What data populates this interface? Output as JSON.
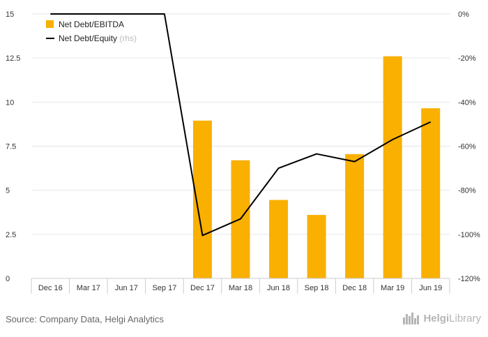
{
  "source": "Source: Company Data, Helgi Analytics",
  "brand": {
    "name_a": "Helgi",
    "name_b": "Library",
    "icon": "city-skyline-icon"
  },
  "colors": {
    "bar": "#F9B000",
    "line": "#000000",
    "grid": "#e6e6e6",
    "axis": "#cccccc"
  },
  "chart_data": {
    "type": "bar",
    "categories": [
      "Dec 16",
      "Mar 17",
      "Jun 17",
      "Sep 17",
      "Dec 17",
      "Mar 18",
      "Jun 18",
      "Sep 18",
      "Dec 18",
      "Mar 19",
      "Jun 19"
    ],
    "series": [
      {
        "name": "Net Debt/EBITDA",
        "type": "bar",
        "axis": "left",
        "values": [
          null,
          null,
          null,
          null,
          8.95,
          6.7,
          4.45,
          3.6,
          7.05,
          12.6,
          9.65
        ]
      },
      {
        "name": "Net Debt/Equity",
        "type": "line",
        "axis": "right",
        "unit": "%",
        "values": [
          0,
          0,
          0,
          0,
          -100.5,
          -93,
          -70,
          -63.5,
          -67,
          -57,
          -49
        ]
      }
    ],
    "legend_rhs_note": "(rhs)",
    "ylim_left": [
      0,
      15
    ],
    "yticks_left": [
      "0",
      "2.5",
      "5",
      "7.5",
      "10",
      "12.5",
      "15"
    ],
    "ylim_right": [
      -120,
      0
    ],
    "yticks_right": [
      "-120%",
      "-100%",
      "-80%",
      "-60%",
      "-40%",
      "-20%",
      "0%"
    ],
    "legend_position": "top-left",
    "grid": true
  }
}
